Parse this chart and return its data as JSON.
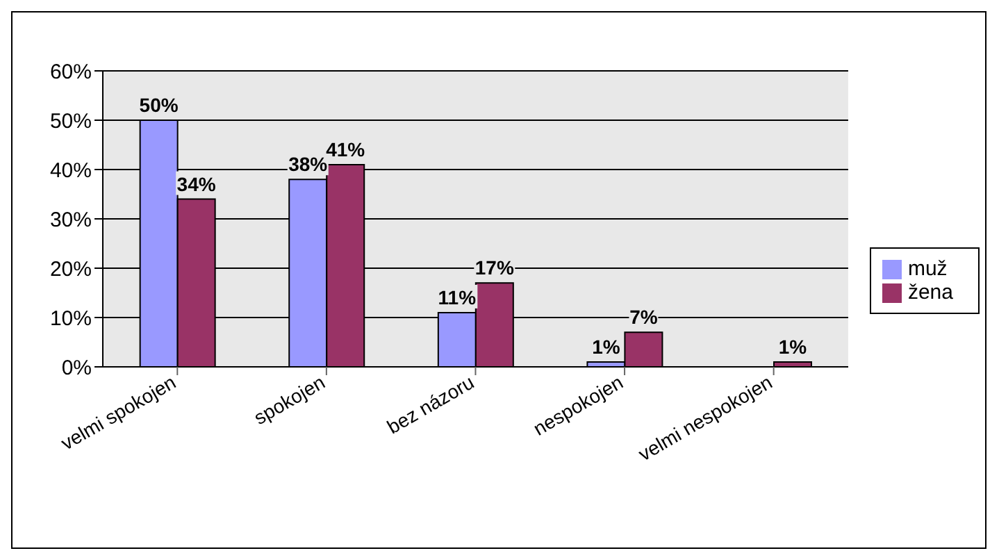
{
  "chart_data": {
    "type": "bar",
    "categories": [
      "velmi spokojen",
      "spokojen",
      "bez názoru",
      "nespokojen",
      "velmi nespokojen"
    ],
    "series": [
      {
        "name": "muž",
        "color": "#9999ff",
        "values": [
          50,
          38,
          11,
          1,
          0
        ],
        "value_labels": [
          "50%",
          "38%",
          "11%",
          "1%",
          null
        ]
      },
      {
        "name": "žena",
        "color": "#993366",
        "values": [
          34,
          41,
          17,
          7,
          1
        ],
        "value_labels": [
          "34%",
          "41%",
          "17%",
          "7%",
          "1%"
        ]
      }
    ],
    "ylim": [
      0,
      60
    ],
    "yticks": [
      {
        "value": 0,
        "label": "0%"
      },
      {
        "value": 10,
        "label": "10%"
      },
      {
        "value": 20,
        "label": "20%"
      },
      {
        "value": 30,
        "label": "30%"
      },
      {
        "value": 40,
        "label": "40%"
      },
      {
        "value": 50,
        "label": "50%"
      },
      {
        "value": 60,
        "label": "60%"
      }
    ],
    "grid": "y",
    "legend": "right"
  }
}
